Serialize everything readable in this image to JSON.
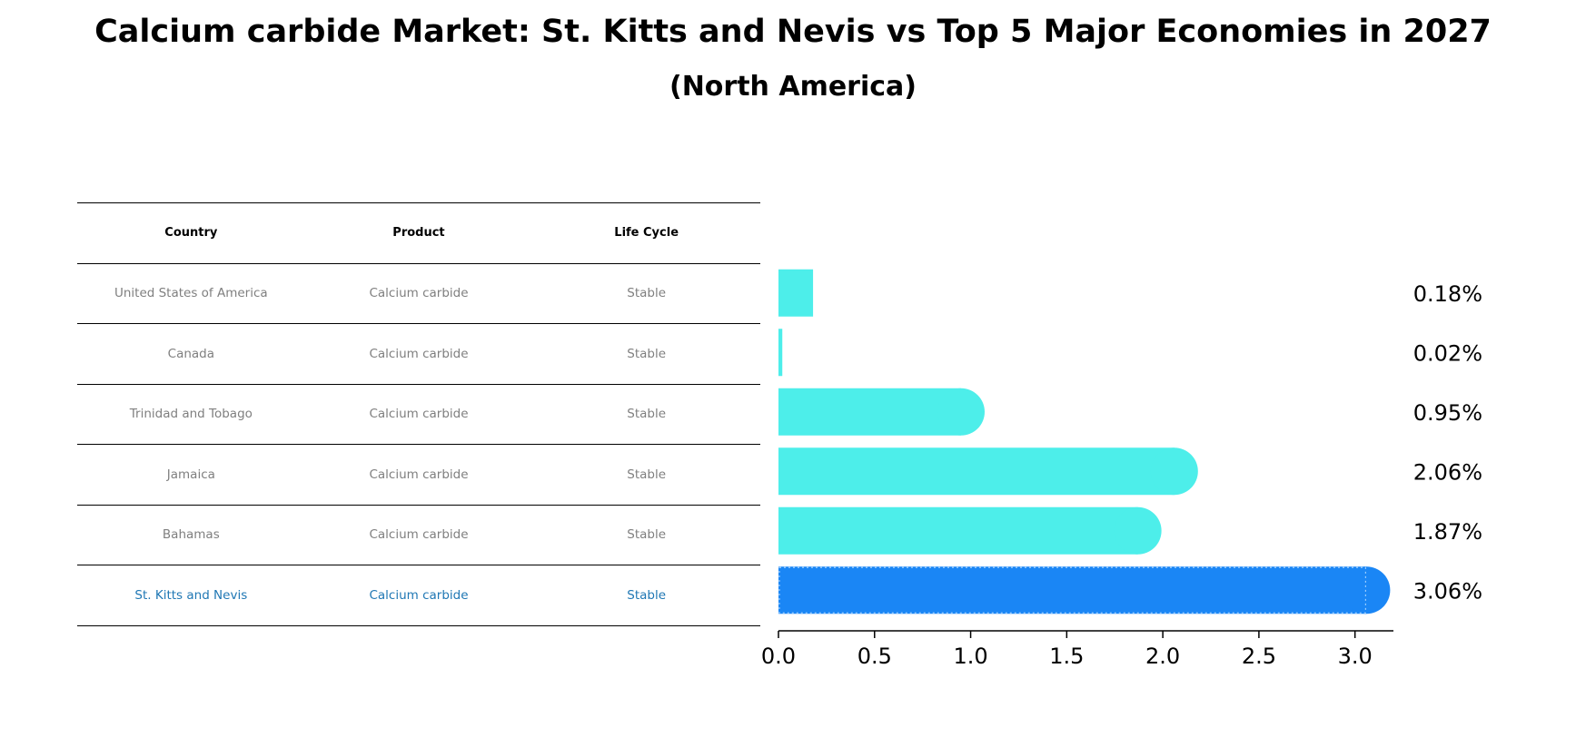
{
  "chart_data": {
    "type": "bar",
    "orientation": "horizontal",
    "title": "Calcium carbide Market: St. Kitts and Nevis vs Top 5 Major Economies in 2027",
    "subtitle": "(North America)",
    "table": {
      "headers": [
        "Country",
        "Product",
        "Life Cycle"
      ],
      "rows": [
        [
          "United States of America",
          "Calcium carbide",
          "Stable"
        ],
        [
          "Canada",
          "Calcium carbide",
          "Stable"
        ],
        [
          "Trinidad and Tobago",
          "Calcium carbide",
          "Stable"
        ],
        [
          "Jamaica",
          "Calcium carbide",
          "Stable"
        ],
        [
          "Bahamas",
          "Calcium carbide",
          "Stable"
        ],
        [
          "St. Kitts and Nevis",
          "Calcium carbide",
          "Stable"
        ]
      ]
    },
    "categories": [
      "United States of America",
      "Canada",
      "Trinidad and Tobago",
      "Jamaica",
      "Bahamas",
      "St. Kitts and Nevis"
    ],
    "values": [
      0.18,
      0.02,
      0.95,
      2.06,
      1.87,
      3.06
    ],
    "value_labels": [
      "0.18%",
      "0.02%",
      "0.95%",
      "2.06%",
      "1.87%",
      "3.06%"
    ],
    "highlight_index": 5,
    "xlim": [
      0,
      3.2
    ],
    "xticks": [
      "0.0",
      "0.5",
      "1.0",
      "1.5",
      "2.0",
      "2.5",
      "3.0"
    ],
    "xtick_values": [
      0,
      0.5,
      1.0,
      1.5,
      2.0,
      2.5,
      3.0
    ],
    "colors": {
      "bar": "#4deeea",
      "highlight_bar": "#1a86f5",
      "highlight_text": "#1f77b4",
      "table_text": "#7f7f7f"
    }
  }
}
